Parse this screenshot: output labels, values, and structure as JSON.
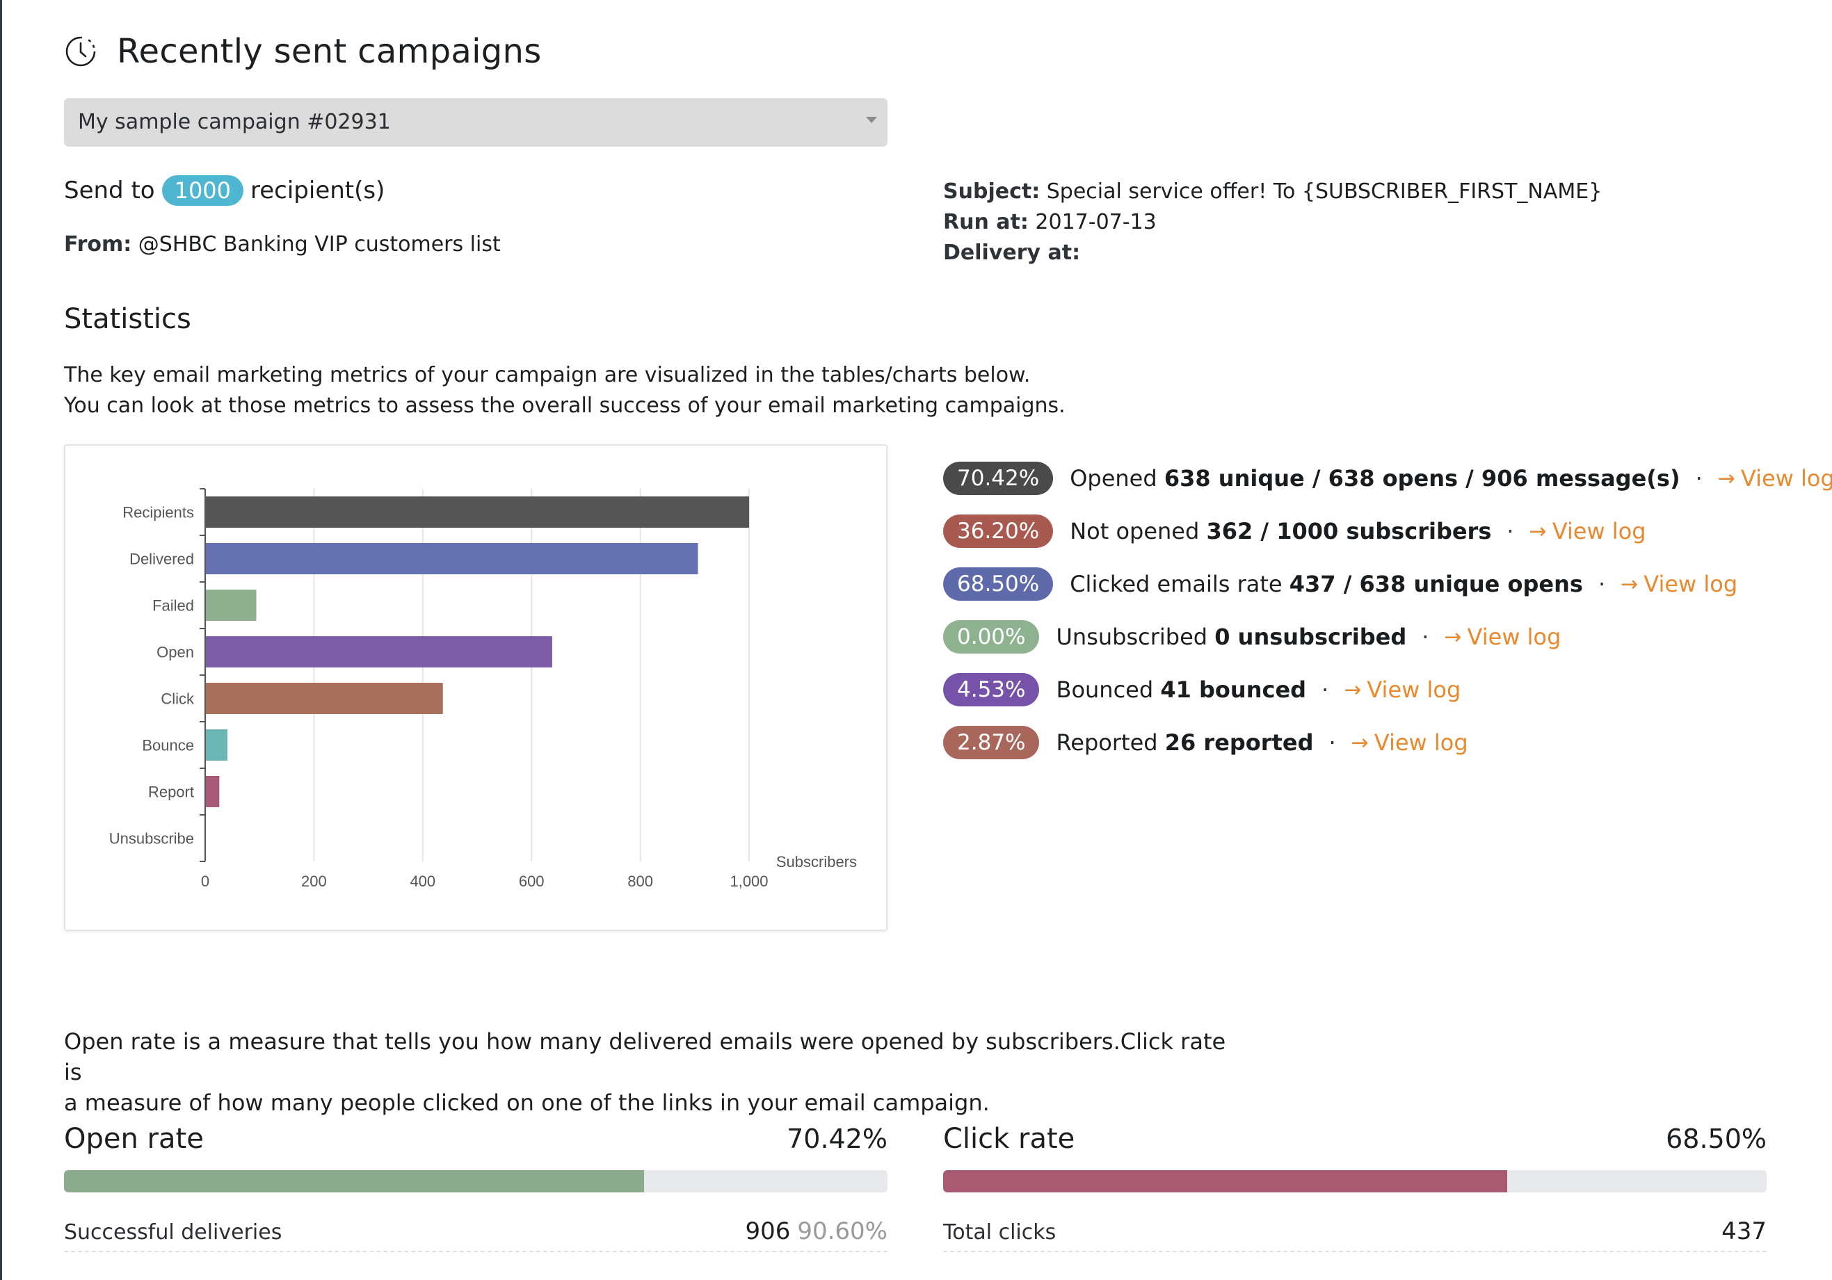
{
  "header": {
    "title": "Recently sent campaigns",
    "icon": "clock-icon"
  },
  "campaign_select": {
    "value": "My sample campaign #02931"
  },
  "summary": {
    "send_to_prefix": "Send to",
    "recipient_count": "1000",
    "send_to_suffix": "recipient(s)",
    "from_label": "From:",
    "from_value": "@SHBC Banking VIP customers list",
    "subject_label": "Subject:",
    "subject_value": "Special service offer! To {SUBSCRIBER_FIRST_NAME}",
    "run_at_label": "Run at:",
    "run_at_value": "2017-07-13",
    "delivery_at_label": "Delivery at:",
    "delivery_at_value": ""
  },
  "statistics": {
    "title": "Statistics",
    "desc_line1": "The key email marketing metrics of your campaign are visualized in the tables/charts below.",
    "desc_line2": "You can look at those metrics to assess the overall success of your email marketing campaigns."
  },
  "chart_data": {
    "type": "bar",
    "orientation": "horizontal",
    "categories": [
      "Recipients",
      "Delivered",
      "Failed",
      "Open",
      "Click",
      "Bounce",
      "Report",
      "Unsubscribe"
    ],
    "values": [
      1000,
      906,
      94,
      638,
      437,
      41,
      26,
      0
    ],
    "colors": [
      "#555555",
      "#6470b0",
      "#8fb08f",
      "#7b5ea7",
      "#a8705a",
      "#6bb5b5",
      "#a85a78",
      "#cccccc"
    ],
    "xlabel": "Subscribers",
    "xlim": [
      0,
      1000
    ],
    "xticks": [
      0,
      200,
      400,
      600,
      800,
      1000
    ],
    "xtick_labels": [
      "0",
      "200",
      "400",
      "600",
      "800",
      "1,000"
    ],
    "grid": true
  },
  "metrics": [
    {
      "pct": "70.42%",
      "color": "#4a4a4a",
      "label": "Opened",
      "detail": "638 unique / 638 opens / 906 message(s)",
      "link": "View log"
    },
    {
      "pct": "36.20%",
      "color": "#a85a50",
      "label": "Not opened",
      "detail": "362 / 1000 subscribers",
      "link": "View log"
    },
    {
      "pct": "68.50%",
      "color": "#5f6aab",
      "label": "Clicked emails rate",
      "detail": "437 / 638 unique opens",
      "link": "View log"
    },
    {
      "pct": "0.00%",
      "color": "#8eb28f",
      "label": "Unsubscribed",
      "detail": "0 unsubscribed",
      "link": "View log"
    },
    {
      "pct": "4.53%",
      "color": "#7653a8",
      "label": "Bounced",
      "detail": "41 bounced",
      "link": "View log"
    },
    {
      "pct": "2.87%",
      "color": "#a8675a",
      "label": "Reported",
      "detail": "26 reported",
      "link": "View log"
    }
  ],
  "rates": {
    "desc_line1": "Open rate is a measure that tells you how many delivered emails were opened by subscribers.Click rate is",
    "desc_line2": "a measure of how many people clicked on one of the links in your email campaign.",
    "open": {
      "label": "Open rate",
      "value": "70.42%",
      "fill": 0.7042,
      "color": "#8cab8c",
      "sub_label": "Successful deliveries",
      "sub_value": "906",
      "sub_pct": "90.60%"
    },
    "click": {
      "label": "Click rate",
      "value": "68.50%",
      "fill": 0.685,
      "color": "#a85a72",
      "sub_label": "Total clicks",
      "sub_value": "437"
    }
  }
}
